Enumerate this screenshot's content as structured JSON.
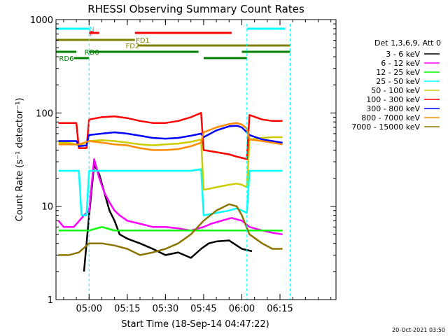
{
  "chart_data": {
    "type": "line",
    "title": "RHESSI Observing Summary Count Rates",
    "xlabel": "Start Time (18-Sep-14 04:47:22)",
    "ylabel": "Count Rate (s⁻¹ detector⁻¹)",
    "yscale": "log",
    "ylim": [
      1,
      1000
    ],
    "y_ticks": [
      {
        "value": 1,
        "label": "1"
      },
      {
        "value": 10,
        "label": "10"
      },
      {
        "value": 100,
        "label": "100"
      },
      {
        "value": 1000,
        "label": "1000"
      }
    ],
    "xlim_minutes": [
      -13,
      97
    ],
    "x_ticks": [
      {
        "value": 0,
        "label": "05:00"
      },
      {
        "value": 15,
        "label": "05:15"
      },
      {
        "value": 30,
        "label": "05:30"
      },
      {
        "value": 45,
        "label": "05:45"
      },
      {
        "value": 60,
        "label": "06:00"
      },
      {
        "value": 75,
        "label": "06:15"
      }
    ],
    "legend_title": "Det 1,3,6,9, Att 0",
    "legend_placement": "right",
    "series": [
      {
        "name": "3 - 6 keV",
        "color": "#000000",
        "points": [
          [
            -2,
            2
          ],
          [
            0,
            8
          ],
          [
            2,
            28
          ],
          [
            4,
            22
          ],
          [
            6,
            14
          ],
          [
            8,
            9
          ],
          [
            10,
            7
          ],
          [
            12,
            5
          ],
          [
            15,
            4.5
          ],
          [
            20,
            4
          ],
          [
            25,
            3.5
          ],
          [
            30,
            3
          ],
          [
            35,
            3.2
          ],
          [
            40,
            2.8
          ],
          [
            44,
            3.5
          ],
          [
            47,
            4
          ],
          [
            50,
            4.2
          ],
          [
            55,
            4.3
          ],
          [
            58,
            3.8
          ],
          [
            60,
            3.5
          ],
          [
            64,
            3.3
          ]
        ]
      },
      {
        "name": "6 - 12 keV",
        "color": "#ff00ff",
        "points": [
          [
            -12,
            7
          ],
          [
            -10,
            6
          ],
          [
            -6,
            6
          ],
          [
            -2,
            8
          ],
          [
            0,
            9
          ],
          [
            2,
            32
          ],
          [
            4,
            20
          ],
          [
            6,
            14
          ],
          [
            8,
            11
          ],
          [
            10,
            9
          ],
          [
            12,
            8
          ],
          [
            15,
            7
          ],
          [
            20,
            6.5
          ],
          [
            25,
            6
          ],
          [
            30,
            6
          ],
          [
            35,
            5.8
          ],
          [
            40,
            5.5
          ],
          [
            45,
            6
          ],
          [
            48,
            6.5
          ],
          [
            52,
            7
          ],
          [
            56,
            7.5
          ],
          [
            60,
            7
          ],
          [
            63,
            6
          ],
          [
            68,
            5.5
          ],
          [
            72,
            5.2
          ],
          [
            76,
            5
          ]
        ]
      },
      {
        "name": "12 - 25 keV",
        "color": "#00ff00",
        "points": [
          [
            -12,
            5.5
          ],
          [
            -8,
            5.5
          ],
          [
            -4,
            5.5
          ],
          [
            0,
            5.5
          ],
          [
            5,
            6
          ],
          [
            10,
            5.5
          ],
          [
            15,
            5.5
          ],
          [
            20,
            5.5
          ],
          [
            25,
            5.5
          ],
          [
            30,
            5.5
          ],
          [
            35,
            5.5
          ],
          [
            40,
            5.5
          ],
          [
            45,
            5.5
          ],
          [
            50,
            5.5
          ],
          [
            55,
            5.5
          ],
          [
            60,
            5.5
          ],
          [
            65,
            5.5
          ],
          [
            70,
            5.5
          ],
          [
            76,
            5.5
          ]
        ]
      },
      {
        "name": "25 - 50 keV",
        "color": "#00ffff",
        "points": [
          [
            -12,
            24
          ],
          [
            -8,
            24
          ],
          [
            -4,
            24
          ],
          [
            -3,
            8
          ],
          [
            -1,
            8
          ],
          [
            0,
            24
          ],
          [
            5,
            24
          ],
          [
            10,
            24
          ],
          [
            15,
            24
          ],
          [
            20,
            24
          ],
          [
            25,
            24
          ],
          [
            30,
            24
          ],
          [
            35,
            24
          ],
          [
            40,
            24
          ],
          [
            44,
            25
          ],
          [
            45,
            8
          ],
          [
            50,
            8.5
          ],
          [
            55,
            9
          ],
          [
            58,
            9.5
          ],
          [
            60,
            9
          ],
          [
            62,
            8.5
          ],
          [
            63,
            24
          ],
          [
            68,
            24
          ],
          [
            72,
            24
          ],
          [
            76,
            24
          ]
        ]
      },
      {
        "name": "50 - 100 keV",
        "color": "#cccc00",
        "points": [
          [
            -12,
            48
          ],
          [
            -8,
            48
          ],
          [
            -4,
            45
          ],
          [
            0,
            50
          ],
          [
            5,
            51
          ],
          [
            10,
            50
          ],
          [
            15,
            48
          ],
          [
            20,
            46
          ],
          [
            25,
            45
          ],
          [
            30,
            46
          ],
          [
            35,
            47
          ],
          [
            40,
            49
          ],
          [
            44,
            52
          ],
          [
            45,
            15
          ],
          [
            50,
            16
          ],
          [
            55,
            17
          ],
          [
            58,
            17.5
          ],
          [
            60,
            17
          ],
          [
            62,
            16
          ],
          [
            63,
            52
          ],
          [
            68,
            54
          ],
          [
            72,
            55
          ],
          [
            76,
            55
          ]
        ]
      },
      {
        "name": "100 - 300 keV",
        "color": "#ff0000",
        "points": [
          [
            -12,
            78
          ],
          [
            -8,
            78
          ],
          [
            -5,
            78
          ],
          [
            -4,
            42
          ],
          [
            -1,
            42
          ],
          [
            0,
            85
          ],
          [
            5,
            90
          ],
          [
            10,
            92
          ],
          [
            15,
            88
          ],
          [
            20,
            82
          ],
          [
            25,
            78
          ],
          [
            30,
            78
          ],
          [
            35,
            82
          ],
          [
            40,
            90
          ],
          [
            44,
            100
          ],
          [
            45,
            40
          ],
          [
            50,
            38
          ],
          [
            55,
            36
          ],
          [
            58,
            34
          ],
          [
            60,
            33
          ],
          [
            62,
            32
          ],
          [
            63,
            95
          ],
          [
            68,
            85
          ],
          [
            72,
            82
          ],
          [
            76,
            82
          ]
        ]
      },
      {
        "name": "300 - 800 keV",
        "color": "#0000ff",
        "points": [
          [
            -12,
            50
          ],
          [
            -8,
            50
          ],
          [
            -5,
            50
          ],
          [
            -4,
            44
          ],
          [
            -1,
            45
          ],
          [
            0,
            58
          ],
          [
            5,
            60
          ],
          [
            10,
            62
          ],
          [
            15,
            60
          ],
          [
            20,
            57
          ],
          [
            25,
            54
          ],
          [
            30,
            53
          ],
          [
            35,
            54
          ],
          [
            40,
            57
          ],
          [
            44,
            60
          ],
          [
            45,
            55
          ],
          [
            50,
            65
          ],
          [
            55,
            72
          ],
          [
            58,
            73
          ],
          [
            60,
            70
          ],
          [
            62,
            62
          ],
          [
            63,
            58
          ],
          [
            68,
            52
          ],
          [
            72,
            50
          ],
          [
            76,
            48
          ]
        ]
      },
      {
        "name": "800 - 7000 keV",
        "color": "#ff8c00",
        "points": [
          [
            -12,
            46
          ],
          [
            -8,
            46
          ],
          [
            -4,
            46
          ],
          [
            0,
            50
          ],
          [
            5,
            48
          ],
          [
            10,
            46
          ],
          [
            15,
            45
          ],
          [
            20,
            42
          ],
          [
            25,
            40
          ],
          [
            30,
            40
          ],
          [
            35,
            41
          ],
          [
            40,
            44
          ],
          [
            44,
            48
          ],
          [
            45,
            62
          ],
          [
            50,
            70
          ],
          [
            55,
            76
          ],
          [
            58,
            78
          ],
          [
            60,
            75
          ],
          [
            62,
            68
          ],
          [
            63,
            52
          ],
          [
            68,
            50
          ],
          [
            72,
            48
          ],
          [
            76,
            46
          ]
        ]
      },
      {
        "name": "7000 - 15000 keV",
        "color": "#8b7500",
        "points": [
          [
            -12,
            3
          ],
          [
            -8,
            3
          ],
          [
            -4,
            3.2
          ],
          [
            0,
            4
          ],
          [
            5,
            4
          ],
          [
            10,
            3.8
          ],
          [
            15,
            3.5
          ],
          [
            20,
            3
          ],
          [
            25,
            3.2
          ],
          [
            30,
            3.5
          ],
          [
            35,
            4
          ],
          [
            40,
            5
          ],
          [
            45,
            7
          ],
          [
            50,
            9
          ],
          [
            55,
            10.5
          ],
          [
            58,
            10
          ],
          [
            60,
            8
          ],
          [
            63,
            5
          ],
          [
            68,
            4
          ],
          [
            72,
            3.5
          ],
          [
            76,
            3.5
          ]
        ]
      }
    ],
    "flag_bars": [
      {
        "label": "N",
        "color": "#00ffff",
        "label_at": 0,
        "segments": [
          [
            -13,
            0
          ],
          [
            62,
            77
          ]
        ]
      },
      {
        "label": "F",
        "color": "#ff0000",
        "label_at": 0,
        "segments": [
          [
            0,
            4
          ],
          [
            18,
            56
          ]
        ]
      },
      {
        "label": "FD1",
        "color": "#808000",
        "label_at": 20,
        "segments": [
          [
            -13,
            18
          ]
        ]
      },
      {
        "label": "FD2",
        "color": "#808000",
        "label_at": 16,
        "segments": [
          [
            19,
            79
          ]
        ]
      },
      {
        "label": "RD0",
        "color": "#008000",
        "label_at": 0,
        "segments": [
          [
            -13,
            -5
          ],
          [
            0,
            43
          ],
          [
            60,
            79
          ]
        ]
      },
      {
        "label": "RD6",
        "color": "#008000",
        "label_at": -10,
        "segments": [
          [
            -6,
            0
          ],
          [
            45,
            62
          ]
        ]
      }
    ],
    "vertical_markers": [
      {
        "x": 0,
        "color": "#00ffff"
      },
      {
        "x": 62,
        "color": "#00ffff"
      },
      {
        "x": 79,
        "color": "#00ffff"
      }
    ],
    "grid": false
  },
  "footer": {
    "timestamp": "20-Oct-2021 03:50"
  }
}
